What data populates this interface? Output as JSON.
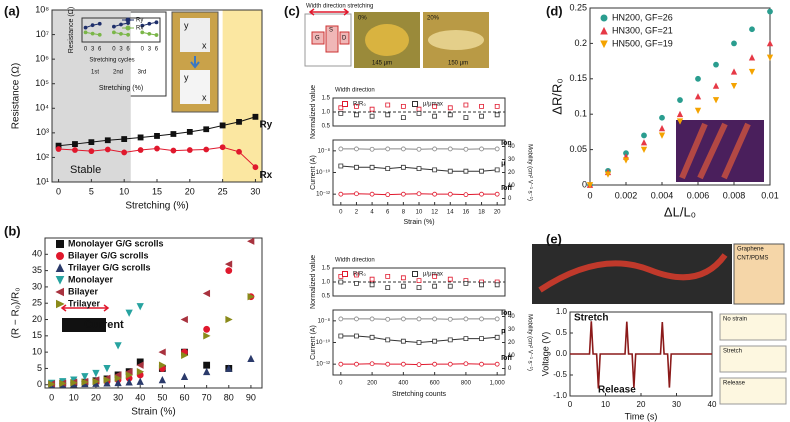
{
  "panel_labels": [
    "(a)",
    "(b)",
    "(c)",
    "(d)",
    "(e)"
  ],
  "image_labels": {
    "a_photo": [
      "y",
      "x",
      "y",
      "x"
    ],
    "c_photos": [
      "Width direction stretching",
      "0%",
      "20%",
      "145 µm",
      "150 µm",
      "G",
      "S",
      "D"
    ],
    "e_image": [
      "Graphene",
      "CNT/PDMS"
    ],
    "e_diagram": [
      "No strain",
      "Stretch",
      "Release"
    ]
  },
  "chart_data": [
    {
      "type": "line",
      "xlabel": "Stretching (%)",
      "ylabel": "Resistance (Ω)",
      "ylog": true,
      "legend": "inline",
      "xlim": [
        -1,
        31
      ],
      "xticks": [
        0,
        5,
        10,
        15,
        20,
        25,
        30
      ],
      "ylim": [
        10,
        100000000
      ],
      "yticks": [
        {
          "value": 10,
          "label": "10¹"
        },
        {
          "value": 100,
          "label": "10²"
        },
        {
          "value": 1000,
          "label": "10³"
        },
        {
          "value": 10000,
          "label": "10⁴"
        },
        {
          "value": 100000,
          "label": "10⁵"
        },
        {
          "value": 1000000,
          "label": "10⁶"
        },
        {
          "value": 10000000,
          "label": "10⁷"
        },
        {
          "value": 100000000,
          "label": "10⁸"
        }
      ],
      "spans": [
        {
          "from": -1,
          "to": 11,
          "color": "#d9d9d9"
        },
        {
          "from": 25,
          "to": 31,
          "color": "#fbe7a1"
        }
      ],
      "annotations": [
        "Stable"
      ],
      "x": [
        0,
        2.5,
        5,
        7.5,
        10,
        12.5,
        15,
        17.5,
        20,
        22.5,
        25,
        27.5,
        30
      ],
      "series": [
        {
          "name": "Ry",
          "color": "#111111",
          "marker": "square",
          "values": [
            300,
            350,
            420,
            500,
            560,
            650,
            750,
            900,
            1100,
            1400,
            2000,
            2800,
            4500
          ]
        },
        {
          "name": "Rx",
          "color": "#e0182d",
          "marker": "circle",
          "values": [
            220,
            200,
            180,
            210,
            160,
            200,
            230,
            190,
            200,
            210,
            260,
            170,
            40
          ]
        }
      ]
    },
    {
      "type": "line",
      "title": "Stretching cycles",
      "xlabel": "Stretching (%)",
      "ylabel": "Resistance (Ω)",
      "legend": "upper right",
      "categories": [
        "0",
        "3",
        "6",
        null,
        "0",
        "3",
        "6",
        null,
        "0",
        "3",
        "6"
      ],
      "group_labels": [
        "1st",
        "2nd",
        "3rd"
      ],
      "ylim": [
        0,
        10
      ],
      "series": [
        {
          "name": "Ry",
          "color": "#1f2f6b",
          "marker": "circle",
          "values": [
            6,
            7,
            7.6,
            null,
            6.4,
            7.3,
            7.9,
            null,
            6.8,
            7.6,
            8.2
          ]
        },
        {
          "name": "Rx'",
          "color": "#7ab648",
          "marker": "circle",
          "values": [
            4,
            3.5,
            3,
            null,
            4,
            3.4,
            3,
            null,
            4,
            3.4,
            2.9
          ]
        }
      ]
    },
    {
      "type": "scatter",
      "xlabel": "Strain (%)",
      "ylabel": "(R − R₀)/R₀",
      "legend": "upper left",
      "xlim": [
        -3,
        95
      ],
      "xticks": [
        0,
        10,
        20,
        30,
        40,
        50,
        60,
        70,
        80,
        90
      ],
      "ylim": [
        -1,
        45
      ],
      "yticks": [
        0,
        5,
        10,
        15,
        20,
        25,
        30,
        35,
        40
      ],
      "annotations": [
        "Current"
      ],
      "x": [
        0,
        5,
        10,
        15,
        20,
        25,
        30,
        35,
        40,
        50,
        60,
        70,
        80,
        90
      ],
      "series": [
        {
          "name": "Monolayer G/G scrolls",
          "color": "#111111",
          "marker": "square",
          "values": [
            0.3,
            0.5,
            0.6,
            0.8,
            1.2,
            1.8,
            3,
            4,
            7,
            5,
            10,
            6,
            5,
            null
          ]
        },
        {
          "name": "Bilayer G/G scrolls",
          "color": "#e0182d",
          "marker": "circle",
          "values": [
            0.2,
            0.3,
            0.4,
            0.5,
            0.8,
            1,
            1.5,
            2,
            3,
            5,
            10,
            17,
            35,
            27
          ]
        },
        {
          "name": "Trilayer G/G scrolls",
          "color": "#2b3a6b",
          "marker": "triangle-up",
          "values": [
            0,
            0.1,
            0.2,
            0.3,
            0.4,
            0.5,
            0.6,
            0.8,
            1,
            1.5,
            2.5,
            4,
            5,
            8
          ]
        },
        {
          "name": "Monolayer",
          "color": "#27a3a0",
          "marker": "triangle-down",
          "values": [
            0.5,
            1,
            1.5,
            2.5,
            3.5,
            5,
            12,
            22,
            24,
            null,
            null,
            null,
            null,
            null
          ]
        },
        {
          "name": "Bilayer",
          "color": "#a8323e",
          "marker": "triangle-left",
          "values": [
            0.3,
            0.5,
            0.8,
            1,
            1.5,
            2,
            3,
            4,
            6,
            10,
            20,
            28,
            37,
            44
          ]
        },
        {
          "name": "Trilayer",
          "color": "#8a8a1a",
          "marker": "triangle-right",
          "values": [
            0.2,
            0.4,
            0.6,
            0.8,
            1,
            1.5,
            2,
            3,
            4,
            6,
            9,
            15,
            20,
            27
          ]
        }
      ]
    },
    {
      "type": "scatter",
      "title": "Width direction",
      "ylabel": "Normalized value",
      "legend": "upper left",
      "xlim": [
        -1,
        21
      ],
      "ylim": [
        0.5,
        1.5
      ],
      "reference_line": 1,
      "yticks": [
        {
          "value": 0.5,
          "label": "0.5"
        },
        {
          "value": 1,
          "label": "1.0"
        },
        {
          "value": 1.5,
          "label": "1.5"
        }
      ],
      "x": [
        0,
        2,
        4,
        6,
        8,
        10,
        12,
        14,
        16,
        18,
        20
      ],
      "series": [
        {
          "name": "R/R₀",
          "color": "#e0182d",
          "marker": "square",
          "filled": false,
          "values": [
            1.15,
            1.2,
            1.1,
            1.25,
            1.2,
            1.1,
            1.2,
            1.15,
            1.25,
            1.2,
            1.2
          ]
        },
        {
          "name": "μ/μmax",
          "color": "#333333",
          "marker": "square",
          "filled": false,
          "values": [
            0.95,
            0.9,
            0.85,
            0.9,
            0.8,
            0.95,
            0.85,
            0.9,
            0.8,
            0.85,
            0.9
          ]
        }
      ]
    },
    {
      "type": "line",
      "xlabel": "Strain (%)",
      "ylabel": "Current (A)",
      "y2label": "Mobility (cm² V⁻¹ s⁻¹)",
      "ylog": true,
      "legend": "inline",
      "xlim": [
        -1,
        21
      ],
      "xticks": [
        0,
        2,
        4,
        6,
        8,
        10,
        12,
        14,
        16,
        18,
        20
      ],
      "ylim": [
        1e-13,
        1e-07
      ],
      "yticks": [
        {
          "value": 1e-08,
          "label": "10⁻⁸"
        },
        {
          "value": 1e-10,
          "label": "10⁻¹⁰"
        },
        {
          "value": 1e-12,
          "label": "10⁻¹²"
        }
      ],
      "y2lim": [
        -5,
        45
      ],
      "y2ticks": [
        0,
        10,
        20,
        30,
        40
      ],
      "x": [
        0,
        2,
        4,
        6,
        8,
        10,
        12,
        14,
        16,
        18,
        20
      ],
      "series": [
        {
          "name": "Ion",
          "color": "#888888",
          "marker": "circle",
          "filled": false,
          "values": [
            1.5e-08,
            1.5e-08,
            1.4e-08,
            1.5e-08,
            1.5e-08,
            1.4e-08,
            1.5e-08,
            1.5e-08,
            1.4e-08,
            1.5e-08,
            1.5e-08
          ]
        },
        {
          "name": "μ",
          "color": "#333333",
          "marker": "square",
          "filled": false,
          "axis": "y2",
          "values": [
            25,
            24,
            24,
            23,
            24,
            23,
            22,
            21,
            21,
            21,
            22
          ]
        },
        {
          "name": "Ioff",
          "color": "#e0182d",
          "marker": "circle",
          "filled": false,
          "values": [
            1e-12,
            1.1e-12,
            1e-12,
            9e-13,
            1e-12,
            1.1e-12,
            1e-12,
            1e-12,
            9e-13,
            1e-12,
            1e-12
          ]
        }
      ]
    },
    {
      "type": "scatter",
      "title": "Width direction",
      "ylabel": "Normalized value",
      "legend": "upper left",
      "xlim": [
        -50,
        1050
      ],
      "ylim": [
        0.5,
        1.5
      ],
      "reference_line": 1,
      "yticks": [
        {
          "value": 0.5,
          "label": "0.5"
        },
        {
          "value": 1,
          "label": "1.0"
        },
        {
          "value": 1.5,
          "label": "1.5"
        }
      ],
      "x": [
        0,
        100,
        200,
        300,
        400,
        500,
        600,
        700,
        800,
        900,
        1000
      ],
      "series": [
        {
          "name": "R/R₀",
          "color": "#e0182d",
          "marker": "square",
          "filled": false,
          "values": [
            1.2,
            1.25,
            1.1,
            1.2,
            1.15,
            1.05,
            1.2,
            1.1,
            1.05,
            1,
            1
          ]
        },
        {
          "name": "μ/μmax",
          "color": "#333333",
          "marker": "square",
          "filled": false,
          "values": [
            1,
            0.95,
            0.9,
            0.8,
            0.85,
            0.8,
            0.85,
            0.85,
            0.95,
            0.9,
            0.9
          ]
        }
      ]
    },
    {
      "type": "line",
      "xlabel": "Stretching counts",
      "ylabel": "Current (A)",
      "y2label": "Mobility (cm² V⁻¹ s⁻¹)",
      "ylog": true,
      "legend": "inline",
      "xlim": [
        -50,
        1050
      ],
      "xticks": [
        0,
        200,
        400,
        600,
        800,
        {
          "value": 1000,
          "label": "1,000"
        }
      ],
      "ylim": [
        1e-13,
        1e-07
      ],
      "yticks": [
        {
          "value": 1e-08,
          "label": "10⁻⁸"
        },
        {
          "value": 1e-10,
          "label": "10⁻¹⁰"
        },
        {
          "value": 1e-12,
          "label": "10⁻¹²"
        }
      ],
      "y2lim": [
        -5,
        45
      ],
      "y2ticks": [
        0,
        10,
        20,
        30,
        40
      ],
      "x": [
        0,
        100,
        200,
        300,
        400,
        500,
        600,
        700,
        800,
        900,
        1000
      ],
      "series": [
        {
          "name": "Ion",
          "color": "#888888",
          "marker": "circle",
          "filled": false,
          "values": [
            1.5e-08,
            1.5e-08,
            1.5e-08,
            1.4e-08,
            1.5e-08,
            1.5e-08,
            1.5e-08,
            1.4e-08,
            1.5e-08,
            1.5e-08,
            1.5e-08
          ]
        },
        {
          "name": "μ",
          "color": "#333333",
          "marker": "square",
          "filled": false,
          "axis": "y2",
          "values": [
            25,
            25,
            24,
            22,
            21,
            20,
            21,
            22,
            23,
            23,
            24
          ]
        },
        {
          "name": "Ioff",
          "color": "#e0182d",
          "marker": "circle",
          "filled": false,
          "values": [
            1e-12,
            1e-12,
            1.1e-12,
            1e-12,
            1e-12,
            9e-13,
            1e-12,
            1e-12,
            1.1e-12,
            1e-12,
            1e-12
          ]
        }
      ]
    },
    {
      "type": "scatter",
      "xlabel": "ΔL/L₀",
      "ylabel": "ΔR/R₀",
      "legend": "upper left",
      "xlim": [
        0,
        0.01
      ],
      "xticks": [
        0,
        0.002,
        0.004,
        0.006,
        0.008,
        0.01
      ],
      "ylim": [
        0,
        0.25
      ],
      "yticks": [
        0,
        0.05,
        0.1,
        0.15,
        0.2,
        0.25
      ],
      "x": [
        0,
        0.001,
        0.002,
        0.003,
        0.004,
        0.005,
        0.006,
        0.007,
        0.008,
        0.009,
        0.01
      ],
      "series": [
        {
          "name": "HN200, GF=26",
          "color": "#2a9d8f",
          "marker": "circle",
          "values": [
            0,
            0.02,
            0.045,
            0.07,
            0.095,
            0.12,
            0.15,
            0.17,
            0.2,
            0.22,
            0.245
          ]
        },
        {
          "name": "HN300, GF=21",
          "color": "#e63946",
          "marker": "triangle-up",
          "values": [
            0,
            0.018,
            0.04,
            0.06,
            0.08,
            0.1,
            0.125,
            0.14,
            0.16,
            0.18,
            0.2
          ]
        },
        {
          "name": "HN500, GF=19",
          "color": "#f4a300",
          "marker": "triangle-down",
          "values": [
            0,
            0.015,
            0.035,
            0.05,
            0.07,
            0.09,
            0.105,
            0.12,
            0.14,
            0.16,
            0.18
          ]
        }
      ]
    },
    {
      "type": "line",
      "xlabel": "Time (s)",
      "ylabel": "Voltage (V)",
      "color": "#8b1a1a",
      "xlim": [
        0,
        40
      ],
      "xticks": [
        0,
        10,
        20,
        30,
        40
      ],
      "ylim": [
        -1,
        1
      ],
      "yticks": [
        {
          "value": -1,
          "label": "-1.0"
        },
        {
          "value": -0.5,
          "label": "-0.5"
        },
        {
          "value": 0,
          "label": "0.0"
        },
        {
          "value": 0.5,
          "label": "0.5"
        },
        {
          "value": 1,
          "label": "1.0"
        }
      ],
      "annotations": [
        "Stretch",
        "Release"
      ],
      "x": [
        0,
        5.5,
        6,
        6.5,
        7.5,
        8,
        8.5,
        15.5,
        16,
        16.5,
        17.5,
        18,
        18.5,
        25.5,
        26,
        26.5,
        27.5,
        28,
        28.5,
        40
      ],
      "values": [
        0,
        0,
        0.78,
        0,
        0,
        -0.82,
        0,
        0,
        0.77,
        0,
        0,
        -0.8,
        0,
        0,
        0.76,
        0,
        0,
        -0.8,
        0,
        0
      ]
    }
  ]
}
